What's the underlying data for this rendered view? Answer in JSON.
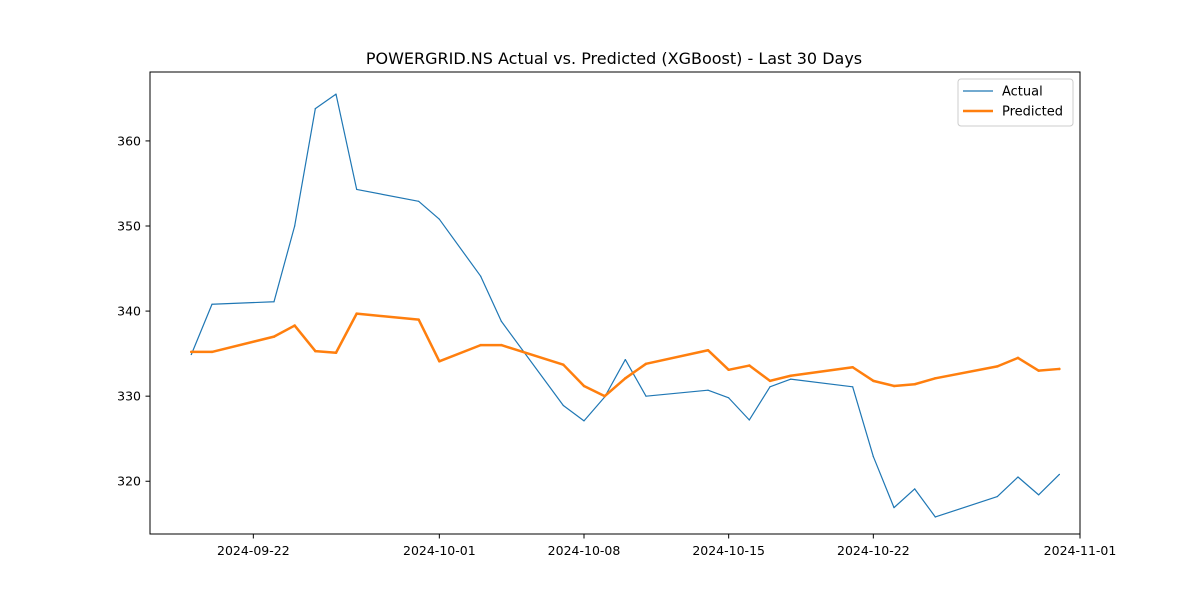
{
  "chart_data": {
    "type": "line",
    "title": "POWERGRID.NS Actual vs. Predicted (XGBoost) - Last 30 Days",
    "xlabel": "",
    "ylabel": "",
    "xlim": [
      "2024-09-17",
      "2024-11-01"
    ],
    "ylim": [
      313.8,
      368.1
    ],
    "x_ticks": [
      "2024-09-22",
      "2024-10-01",
      "2024-10-08",
      "2024-10-15",
      "2024-10-22",
      "2024-11-01"
    ],
    "y_ticks": [
      320,
      330,
      340,
      350,
      360
    ],
    "grid": false,
    "legend_position": "top-right",
    "x": [
      "2024-09-19",
      "2024-09-20",
      "2024-09-23",
      "2024-09-24",
      "2024-09-25",
      "2024-09-26",
      "2024-09-27",
      "2024-09-30",
      "2024-10-01",
      "2024-10-03",
      "2024-10-04",
      "2024-10-07",
      "2024-10-08",
      "2024-10-09",
      "2024-10-10",
      "2024-10-11",
      "2024-10-14",
      "2024-10-15",
      "2024-10-16",
      "2024-10-17",
      "2024-10-18",
      "2024-10-21",
      "2024-10-22",
      "2024-10-23",
      "2024-10-24",
      "2024-10-25",
      "2024-10-28",
      "2024-10-29",
      "2024-10-30",
      "2024-10-31"
    ],
    "series": [
      {
        "name": "Actual",
        "color": "#1f77b4",
        "values": [
          334.9,
          340.8,
          341.1,
          350.0,
          363.8,
          365.5,
          354.3,
          352.9,
          350.8,
          344.1,
          338.8,
          328.9,
          327.1,
          329.9,
          334.3,
          330.0,
          330.7,
          329.8,
          327.2,
          331.1,
          332.0,
          331.1,
          322.9,
          316.9,
          319.1,
          315.8,
          318.2,
          320.5,
          318.4,
          320.8
        ]
      },
      {
        "name": "Predicted",
        "color": "#ff7f0e",
        "values": [
          335.2,
          335.2,
          337.0,
          338.3,
          335.3,
          335.1,
          339.7,
          339.0,
          334.1,
          336.0,
          336.0,
          333.7,
          331.2,
          330.0,
          332.1,
          333.8,
          335.4,
          333.1,
          333.6,
          331.8,
          332.4,
          333.4,
          331.8,
          331.2,
          331.4,
          332.1,
          333.5,
          334.5,
          333.0,
          333.2
        ]
      }
    ]
  }
}
